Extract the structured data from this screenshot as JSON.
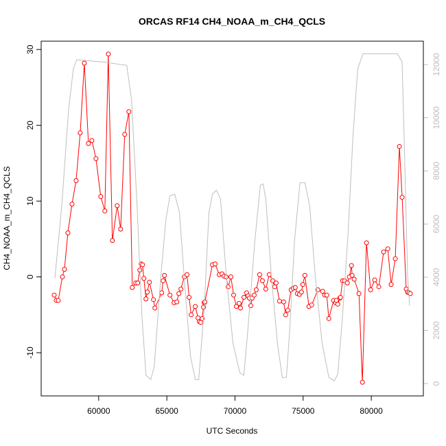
{
  "chart_data": {
    "type": "line",
    "title": "ORCAS RF14 CH4_NOAA_m_CH4_QCLS",
    "xlabel": "UTC Seconds",
    "ylabel": "CH4_NOAA_m_CH4_QCLS",
    "xlim": [
      55780,
      83820
    ],
    "xticks": [
      60000,
      65000,
      70000,
      75000,
      80000
    ],
    "ylim": [
      -15.7,
      31.1
    ],
    "yticks": [
      -10,
      0,
      10,
      20,
      30
    ],
    "y2lim": [
      -465,
      12880
    ],
    "y2ticks": [
      0,
      2000,
      4000,
      6000,
      8000,
      10000,
      12000
    ],
    "y2tick_color": "#bebebe",
    "series": [
      {
        "color": "#ff0000",
        "x": [
          56735,
          56886,
          57036,
          57338,
          57489,
          57740,
          58041,
          58343,
          58644,
          58946,
          59247,
          59499,
          59800,
          60152,
          60453,
          60705,
          61006,
          61358,
          61609,
          61911,
          62212,
          62463,
          62715,
          62865,
          63016,
          63117,
          63217,
          63318,
          63468,
          63569,
          63720,
          64021,
          64122,
          64624,
          64725,
          64825,
          65227,
          65529,
          65730,
          65880,
          66031,
          66282,
          66483,
          66634,
          66785,
          67086,
          67287,
          67388,
          67488,
          67589,
          67689,
          67740,
          67790,
          68343,
          68544,
          68845,
          69046,
          69197,
          69348,
          69498,
          69699,
          69900,
          70101,
          70302,
          70403,
          70654,
          70855,
          70956,
          71056,
          71157,
          71257,
          71408,
          71559,
          71810,
          72011,
          72262,
          72513,
          72765,
          72915,
          73016,
          73267,
          73569,
          73719,
          73870,
          74121,
          74272,
          74423,
          74574,
          74724,
          74875,
          74976,
          75126,
          75428,
          75629,
          76081,
          76433,
          76584,
          76734,
          76885,
          77237,
          77388,
          77438,
          77538,
          77689,
          77739,
          77890,
          78041,
          78242,
          78393,
          78543,
          78594,
          78744,
          79096,
          79347,
          79649,
          79950,
          80252,
          80553,
          80905,
          81207,
          81458,
          81759,
          82061,
          82262,
          82563,
          82664,
          82765,
          82865
        ],
        "values": [
          -2.4,
          -3.1,
          -3.1,
          0,
          1,
          5.8,
          9.6,
          12.7,
          19,
          28.2,
          17.6,
          18,
          15.6,
          10.6,
          8.7,
          29.4,
          4.8,
          9.4,
          6.3,
          18.8,
          21.8,
          -1.4,
          -0.8,
          -0.8,
          0.9,
          1.7,
          1.6,
          -0.2,
          -2.9,
          -2,
          -0.7,
          -3,
          -4.1,
          -2.1,
          -0.5,
          0.2,
          -2.4,
          -3.4,
          -3.3,
          -2.2,
          -1.6,
          0,
          0.3,
          -2.7,
          -5,
          -3.9,
          -5.4,
          -5.9,
          -6,
          -5.5,
          -4,
          -3.4,
          -3.3,
          1.6,
          1.7,
          0.3,
          0.4,
          0.1,
          0,
          -1.3,
          0,
          -2.4,
          -3.9,
          -3.5,
          -4.1,
          -2.7,
          -2.1,
          -2.5,
          -2.8,
          -3.8,
          -2.8,
          -2.4,
          -1.7,
          0.3,
          -0.5,
          -1.6,
          0.3,
          -0.5,
          -1.3,
          -0.8,
          -3.2,
          -3.3,
          -5,
          -4.4,
          -1.7,
          -1.5,
          -1.4,
          -2.2,
          -2.3,
          -2,
          -1,
          0.2,
          -3.9,
          -3.7,
          -1.7,
          -1.9,
          -2.4,
          -2.4,
          -5.5,
          -3.1,
          -3.4,
          -3.1,
          -3.6,
          -2.8,
          -2.7,
          -0.5,
          -0.5,
          -0.8,
          0,
          1.5,
          0.2,
          -0.3,
          -2.2,
          -13.9,
          4.5,
          -1.7,
          -0.4,
          -1.3,
          3.3,
          3.7,
          -1,
          2.4,
          17.2,
          10.5,
          -1.6,
          -2,
          -2.1,
          -2.2
        ]
      },
      {
        "color": "#bebebe",
        "axis": "y2",
        "x": [
          56785,
          57290,
          57790,
          58140,
          58390,
          60300,
          62060,
          62410,
          62820,
          63170,
          63470,
          63820,
          64070,
          64570,
          64930,
          65230,
          65580,
          65930,
          66330,
          66740,
          67090,
          67340,
          67740,
          68090,
          68340,
          68640,
          68940,
          69350,
          69850,
          70350,
          70650,
          70950,
          71460,
          71860,
          72060,
          72260,
          72660,
          73110,
          73470,
          73770,
          74020,
          74370,
          74770,
          75130,
          75480,
          75880,
          76390,
          76890,
          77290,
          77540,
          77890,
          78300,
          78650,
          79000,
          79400,
          81910,
          82260,
          82410,
          82660,
          82810
        ],
        "values": [
          3970,
          6680,
          10290,
          11840,
          12180,
          12100,
          11970,
          10680,
          6680,
          2550,
          310,
          150,
          620,
          4100,
          6170,
          7070,
          7120,
          6420,
          3590,
          1010,
          150,
          150,
          2810,
          6420,
          7120,
          7280,
          6940,
          4100,
          1520,
          410,
          310,
          2040,
          5390,
          7460,
          7510,
          6940,
          4100,
          1520,
          230,
          230,
          2040,
          5390,
          7560,
          7560,
          6680,
          4100,
          1520,
          230,
          100,
          360,
          2550,
          5650,
          9260,
          11840,
          12410,
          12410,
          12100,
          9260,
          4100,
          2940
        ]
      }
    ]
  }
}
